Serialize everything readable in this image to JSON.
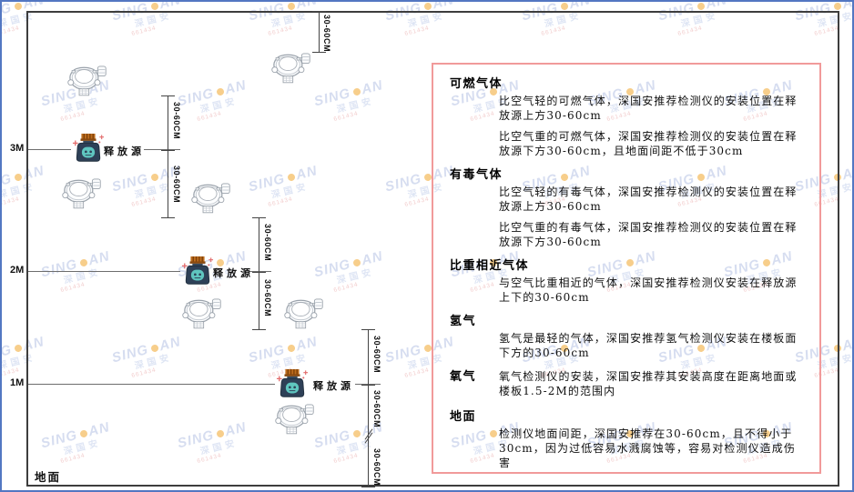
{
  "diagram": {
    "height_labels": [
      "3M",
      "2M",
      "1M"
    ],
    "ground_label": "地面",
    "release_source_label": "释放源",
    "dim_label": "30-60CM",
    "icons": {
      "detector": "gas-detector-icon",
      "release_source": "release-source-icon"
    }
  },
  "panel": {
    "border_color": "#f19a9a",
    "sections": [
      {
        "title": "可燃气体",
        "paragraphs": [
          "比空气轻的可燃气体，深国安推荐检测仪的安装位置在释放源上方30-60cm",
          "比空气重的可燃气体，深国安推荐检测仪的安装位置在释放源下方30-60cm，且地面间距不低于30cm"
        ]
      },
      {
        "title": "有毒气体",
        "paragraphs": [
          "比空气轻的有毒气体，深国安推荐检测仪的安装位置在释放源上方30-60cm",
          "比空气重的有毒气体，深国安推荐检测仪的安装位置在释放源下方30-60cm"
        ]
      },
      {
        "title": "比重相近气体",
        "paragraphs": [
          "与空气比重相近的气体，深国安推荐检测仪安装在释放源上下的30-60cm"
        ]
      },
      {
        "title": "氢气",
        "paragraphs": [
          "氢气是最轻的气体，深国安推荐氢气检测仪安装在楼板面下方的30-60cm"
        ]
      },
      {
        "title": "氧气",
        "paragraphs": [
          "氧气检测仪的安装，深国安推荐其安装高度在距离地面或楼板1.5-2M的范围内"
        ]
      },
      {
        "title": "地面",
        "paragraphs": [
          "检测仪地面间距，深国安推荐在30-60cm，且不得小于30cm，因为过低容易水溅腐蚀等，容易对检测仪造成伤害"
        ]
      }
    ]
  },
  "watermark": {
    "brand_left": "SING",
    "brand_right": "AN",
    "brand_cn": "深国安",
    "sub_text": "661434",
    "dot_color": "#f2a72e"
  }
}
